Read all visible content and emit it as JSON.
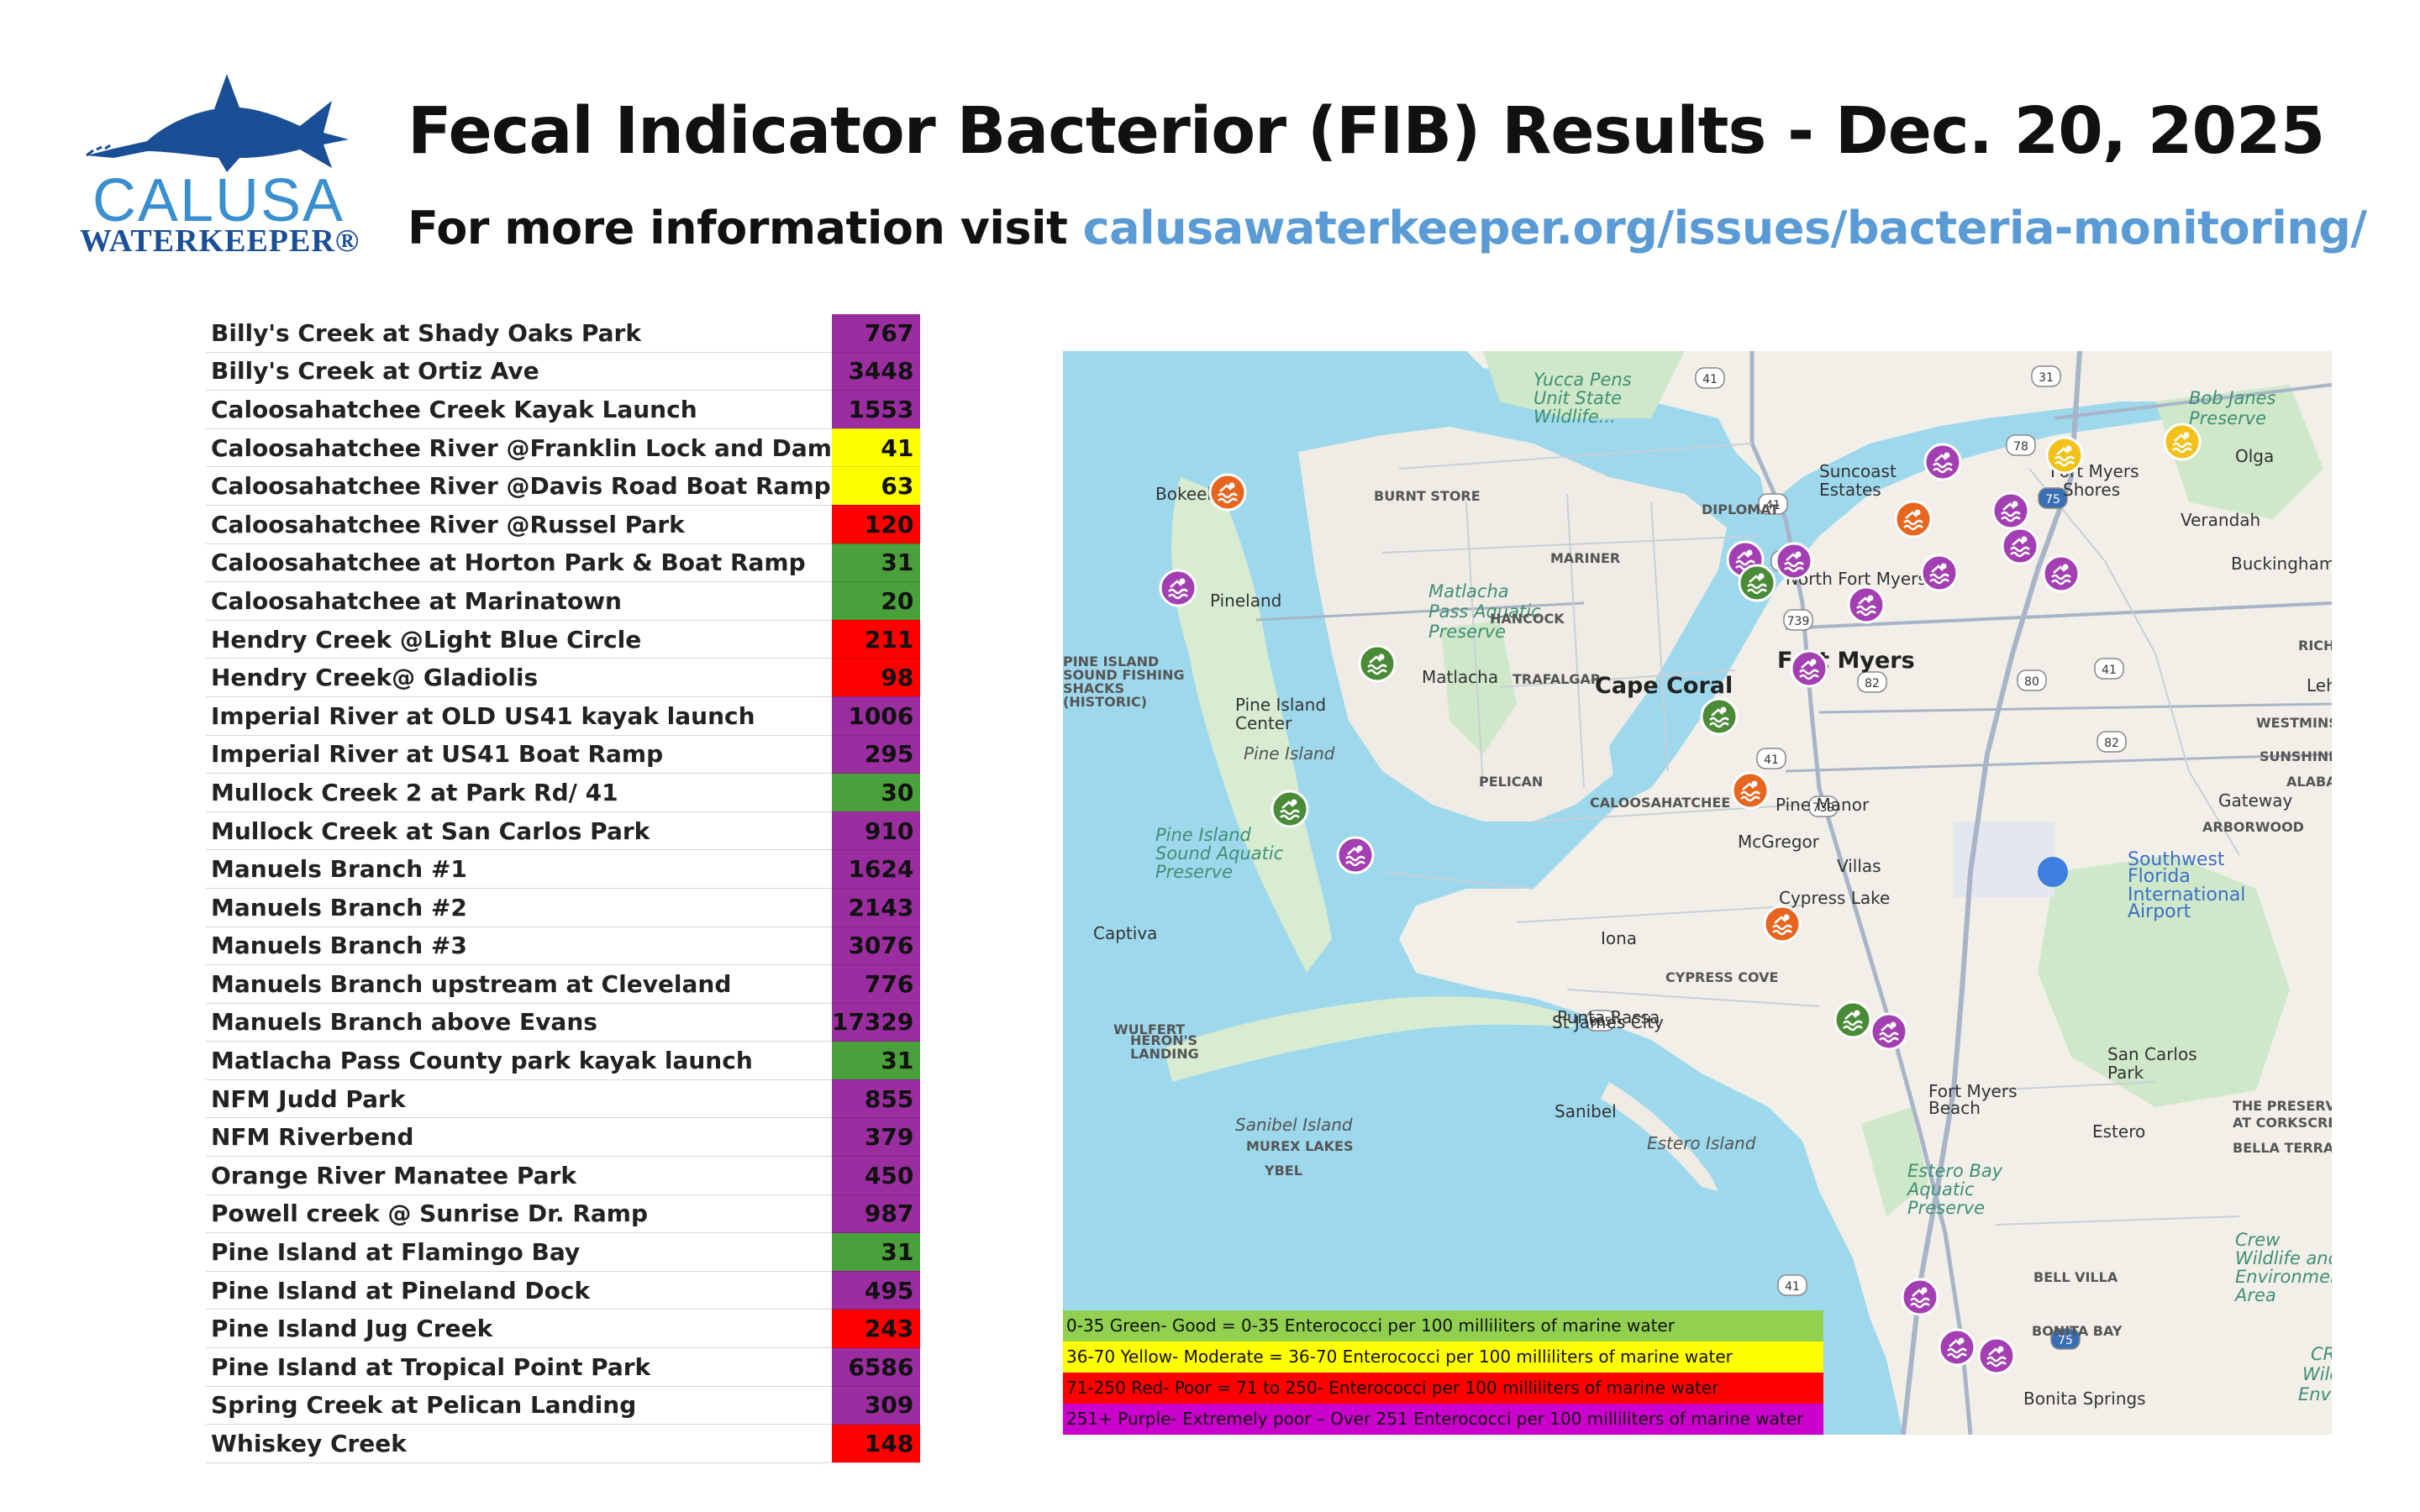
{
  "logo": {
    "line1": "CALUSA",
    "line2": "WATERKEEPER®"
  },
  "header": {
    "title": "Fecal Indicator Bacterior (FIB) Results - Dec. 20, 2025",
    "subtitle_prefix": "For more information visit ",
    "subtitle_link": "calusawaterkeeper.org/issues/bacteria-monitoring/"
  },
  "colors": {
    "purple": "#9b2da0",
    "yellow": "#ffff00",
    "red": "#ff0000",
    "green": "#4aa03a"
  },
  "sites": [
    {
      "name": "Billy's Creek at Shady Oaks Park",
      "value": "767",
      "color": "purple"
    },
    {
      "name": "Billy's Creek at Ortiz Ave",
      "value": "3448",
      "color": "purple"
    },
    {
      "name": "Caloosahatchee Creek Kayak Launch",
      "value": "1553",
      "color": "purple"
    },
    {
      "name": "Caloosahatchee River @Franklin Lock and Dam",
      "value": "41",
      "color": "yellow"
    },
    {
      "name": "Caloosahatchee River @Davis Road Boat Ramp",
      "value": "63",
      "color": "yellow"
    },
    {
      "name": "Caloosahatchee River @Russel Park",
      "value": "120",
      "color": "red"
    },
    {
      "name": "Caloosahatchee at Horton Park & Boat Ramp",
      "value": "31",
      "color": "green"
    },
    {
      "name": "Caloosahatchee at Marinatown",
      "value": "20",
      "color": "green"
    },
    {
      "name": "Hendry Creek @Light Blue Circle",
      "value": "211",
      "color": "red"
    },
    {
      "name": "Hendry Creek@ Gladiolis",
      "value": "98",
      "color": "red"
    },
    {
      "name": "Imperial River at OLD US41 kayak launch",
      "value": "1006",
      "color": "purple"
    },
    {
      "name": "Imperial River at US41 Boat Ramp",
      "value": "295",
      "color": "purple"
    },
    {
      "name": "Mullock Creek 2 at Park Rd/ 41",
      "value": "30",
      "color": "green"
    },
    {
      "name": "Mullock Creek at San Carlos Park",
      "value": "910",
      "color": "purple"
    },
    {
      "name": "Manuels Branch #1",
      "value": "1624",
      "color": "purple"
    },
    {
      "name": "Manuels Branch #2",
      "value": "2143",
      "color": "purple"
    },
    {
      "name": "Manuels Branch #3",
      "value": "3076",
      "color": "purple"
    },
    {
      "name": "Manuels Branch upstream at Cleveland",
      "value": "776",
      "color": "purple"
    },
    {
      "name": "Manuels Branch above Evans",
      "value": "17329",
      "color": "purple"
    },
    {
      "name": "Matlacha Pass County park kayak launch",
      "value": "31",
      "color": "green"
    },
    {
      "name": "NFM Judd Park",
      "value": "855",
      "color": "purple"
    },
    {
      "name": "NFM Riverbend",
      "value": "379",
      "color": "purple"
    },
    {
      "name": "Orange River Manatee Park",
      "value": "450",
      "color": "purple"
    },
    {
      "name": "Powell creek @ Sunrise Dr. Ramp",
      "value": "987",
      "color": "purple"
    },
    {
      "name": "Pine Island at Flamingo Bay",
      "value": "31",
      "color": "green"
    },
    {
      "name": "Pine Island at Pineland Dock",
      "value": "495",
      "color": "purple"
    },
    {
      "name": "Pine Island Jug Creek",
      "value": "243",
      "color": "red"
    },
    {
      "name": "Pine Island at Tropical Point Park",
      "value": "6586",
      "color": "purple"
    },
    {
      "name": "Spring Creek at Pelican Landing",
      "value": "309",
      "color": "purple"
    },
    {
      "name": "Whiskey Creek",
      "value": "148",
      "color": "red"
    }
  ],
  "map": {
    "labels": [
      {
        "text": "Yucca Pens",
        "k": "park"
      },
      {
        "text": "Unit State",
        "k": "park"
      },
      {
        "text": "Wildlife...",
        "k": "park"
      },
      {
        "text": "Bob Janes",
        "k": "park"
      },
      {
        "text": "Preserve",
        "k": "park"
      },
      {
        "text": "Bokeelia",
        "k": "town"
      },
      {
        "text": "BURNT STORE",
        "k": "area"
      },
      {
        "text": "Suncoast",
        "k": "town"
      },
      {
        "text": "Estates",
        "k": "town"
      },
      {
        "text": "Fort Myers",
        "k": "town"
      },
      {
        "text": "Shores",
        "k": "town"
      },
      {
        "text": "Olga",
        "k": "town"
      },
      {
        "text": "DIPLOMAT",
        "k": "area"
      },
      {
        "text": "Verandah",
        "k": "town"
      },
      {
        "text": "MARINER",
        "k": "area"
      },
      {
        "text": "Buckingham",
        "k": "town"
      },
      {
        "text": "Matlacha",
        "k": "park"
      },
      {
        "text": "Pass Aquatic",
        "k": "park"
      },
      {
        "text": "Preserve",
        "k": "park"
      },
      {
        "text": "Pineland",
        "k": "town"
      },
      {
        "text": "HANCOCK",
        "k": "area"
      },
      {
        "text": "North Fort Myers",
        "k": "town"
      },
      {
        "text": "Fort Myers",
        "k": "city"
      },
      {
        "text": "RICHMOND",
        "k": "area"
      },
      {
        "text": "PINE ISLAND",
        "k": "area"
      },
      {
        "text": "SOUND FISHING",
        "k": "area"
      },
      {
        "text": "SHACKS",
        "k": "area"
      },
      {
        "text": "(HISTORIC)",
        "k": "area"
      },
      {
        "text": "Matlacha",
        "k": "town"
      },
      {
        "text": "TRAFALGAR",
        "k": "area"
      },
      {
        "text": "Cape Coral",
        "k": "city"
      },
      {
        "text": "Lehigh",
        "k": "town"
      },
      {
        "text": "Pine Island",
        "k": "town"
      },
      {
        "text": "Center",
        "k": "town"
      },
      {
        "text": "WESTMINSTER",
        "k": "area"
      },
      {
        "text": "Pine Island",
        "k": "island"
      },
      {
        "text": "SUNSHINE",
        "k": "area"
      },
      {
        "text": "PELICAN",
        "k": "area"
      },
      {
        "text": "ALABAMA",
        "k": "area"
      },
      {
        "text": "CALOOSAHATCHEE",
        "k": "area"
      },
      {
        "text": "Gateway",
        "k": "town"
      },
      {
        "text": "Pine Manor",
        "k": "town"
      },
      {
        "text": "Pine Island",
        "k": "park"
      },
      {
        "text": "Sound Aquatic",
        "k": "park"
      },
      {
        "text": "Preserve",
        "k": "park"
      },
      {
        "text": "McGregor",
        "k": "town"
      },
      {
        "text": "ARBORWOOD",
        "k": "area"
      },
      {
        "text": "Villas",
        "k": "town"
      },
      {
        "text": "Southwest",
        "k": "airport"
      },
      {
        "text": "Florida",
        "k": "airport"
      },
      {
        "text": "International",
        "k": "airport"
      },
      {
        "text": "Airport",
        "k": "airport"
      },
      {
        "text": "Cypress Lake",
        "k": "town"
      },
      {
        "text": "Captiva",
        "k": "town"
      },
      {
        "text": "Iona",
        "k": "town"
      },
      {
        "text": "CYPRESS COVE",
        "k": "area"
      },
      {
        "text": "St James City",
        "k": "town"
      },
      {
        "text": "Punta Rassa",
        "k": "town"
      },
      {
        "text": "WULFERT",
        "k": "area"
      },
      {
        "text": "San Carlos",
        "k": "town"
      },
      {
        "text": "Park",
        "k": "town"
      },
      {
        "text": "HERON'S",
        "k": "area"
      },
      {
        "text": "LANDING",
        "k": "area"
      },
      {
        "text": "Fort Myers",
        "k": "town"
      },
      {
        "text": "Beach",
        "k": "town"
      },
      {
        "text": "Sanibel",
        "k": "town"
      },
      {
        "text": "THE PRESERVE",
        "k": "area"
      },
      {
        "text": "AT CORKSCREW",
        "k": "area"
      },
      {
        "text": "Sanibel Island",
        "k": "island"
      },
      {
        "text": "Estero Island",
        "k": "island"
      },
      {
        "text": "Estero",
        "k": "town"
      },
      {
        "text": "MUREX LAKES",
        "k": "area"
      },
      {
        "text": "BELLA TERRA",
        "k": "area"
      },
      {
        "text": "YBEL",
        "k": "area"
      },
      {
        "text": "Estero Bay",
        "k": "park"
      },
      {
        "text": "Aquatic",
        "k": "park"
      },
      {
        "text": "Preserve",
        "k": "park"
      },
      {
        "text": "Crew",
        "k": "park"
      },
      {
        "text": "Wildlife and",
        "k": "park"
      },
      {
        "text": "Environmental",
        "k": "park"
      },
      {
        "text": "Area",
        "k": "park"
      },
      {
        "text": "BELL VILLA",
        "k": "area"
      },
      {
        "text": "BONITA BAY",
        "k": "area"
      },
      {
        "text": "Bonita Springs",
        "k": "town"
      },
      {
        "text": "CR",
        "k": "park"
      },
      {
        "text": "Wildl",
        "k": "park"
      },
      {
        "text": "Enviro",
        "k": "park"
      }
    ],
    "roads": [
      "41",
      "31",
      "78",
      "75",
      "41",
      "865",
      "739",
      "82",
      "80",
      "41",
      "41",
      "82",
      "739",
      "865",
      "41",
      "75"
    ],
    "markers": [
      "purple",
      "yellow",
      "yellow",
      "orange",
      "purple",
      "orange",
      "purple",
      "purple",
      "purple",
      "green",
      "purple",
      "purple",
      "purple",
      "purple",
      "green",
      "purple",
      "green",
      "orange",
      "green",
      "purple",
      "orange",
      "green",
      "purple",
      "purple",
      "purple",
      "purple"
    ]
  },
  "legend": [
    {
      "text": "0-35   Green- Good = 0-35 Enterococci per 100 milliliters of marine water",
      "color": "green"
    },
    {
      "text": "36-70   Yellow- Moderate = 36-70 Enterococci per 100 milliliters of marine water",
      "color": "yellow"
    },
    {
      "text": "71-250   Red- Poor = 71 to 250-  Enterococci per 100 milliliters of marine water",
      "color": "red"
    },
    {
      "text": "251+   Purple- Extremely poor – Over 251 Enterococci per 100 milliliters of marine water",
      "color": "purple"
    }
  ]
}
